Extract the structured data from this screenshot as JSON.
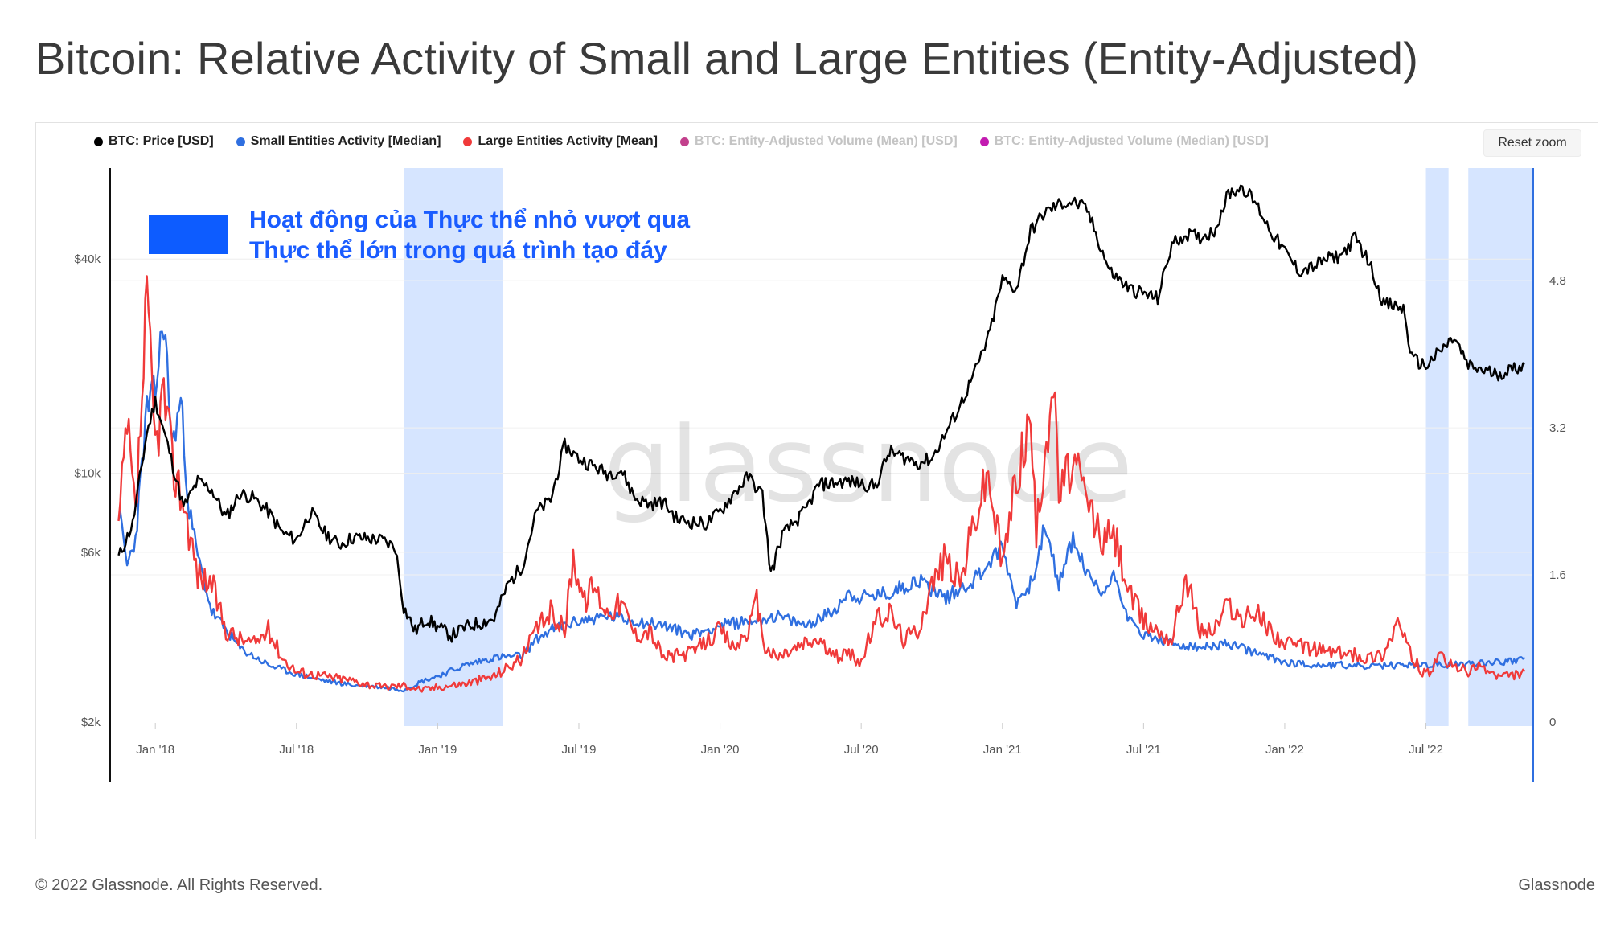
{
  "page": {
    "title": "Bitcoin: Relative Activity of Small and Large Entities (Entity-Adjusted)",
    "copyright": "© 2022 Glassnode. All Rights Reserved.",
    "brand": "Glassnode"
  },
  "toolbar": {
    "reset_zoom_label": "Reset zoom"
  },
  "legend": [
    {
      "label": "BTC: Price [USD]",
      "color": "#000000",
      "active": true
    },
    {
      "label": "Small Entities Activity [Median]",
      "color": "#2f6fe0",
      "active": true
    },
    {
      "label": "Large Entities Activity [Mean]",
      "color": "#f03a3a",
      "active": true
    },
    {
      "label": "BTC: Entity-Adjusted Volume (Mean) [USD]",
      "color": "#c2408c",
      "active": false
    },
    {
      "label": "BTC: Entity-Adjusted Volume (Median) [USD]",
      "color": "#c21bb0",
      "active": false
    }
  ],
  "annotation": {
    "line1": "Hoạt động của Thực thể nhỏ vượt qua",
    "line2": "Thực thể lớn trong quá trình tạo đáy",
    "color": "#0d5cff"
  },
  "watermark": "glassnode",
  "chart_data": {
    "type": "line",
    "x_range": [
      2017.84,
      2022.88
    ],
    "x_ticks": [
      {
        "t": 2018.0,
        "label": "Jan '18"
      },
      {
        "t": 2018.5,
        "label": "Jul '18"
      },
      {
        "t": 2019.0,
        "label": "Jan '19"
      },
      {
        "t": 2019.5,
        "label": "Jul '19"
      },
      {
        "t": 2020.0,
        "label": "Jan '20"
      },
      {
        "t": 2020.5,
        "label": "Jul '20"
      },
      {
        "t": 2021.0,
        "label": "Jan '21"
      },
      {
        "t": 2021.5,
        "label": "Jul '21"
      },
      {
        "t": 2022.0,
        "label": "Jan '22"
      },
      {
        "t": 2022.5,
        "label": "Jul '22"
      }
    ],
    "left_axis": {
      "scale": "log",
      "range": [
        2000,
        80000
      ],
      "ticks": [
        {
          "v": 2000,
          "label": "$2k"
        },
        {
          "v": 6000,
          "label": "$6k"
        },
        {
          "v": 10000,
          "label": "$10k"
        },
        {
          "v": 40000,
          "label": "$40k"
        }
      ]
    },
    "right_axis": {
      "scale": "linear",
      "range": [
        0,
        6.2
      ],
      "ticks": [
        {
          "v": 0,
          "label": "0"
        },
        {
          "v": 1.6,
          "label": "1.6"
        },
        {
          "v": 3.2,
          "label": "3.2"
        },
        {
          "v": 4.8,
          "label": "4.8"
        }
      ]
    },
    "highlight_periods": [
      [
        2018.88,
        2019.23
      ],
      [
        2022.5,
        2022.58
      ],
      [
        2022.65,
        2022.88
      ]
    ],
    "series": [
      {
        "name": "BTC: Price [USD]",
        "axis": "left",
        "color": "#000000",
        "points": [
          [
            2017.87,
            5800
          ],
          [
            2017.92,
            7200
          ],
          [
            2017.97,
            13000
          ],
          [
            2018.0,
            16000
          ],
          [
            2018.05,
            11500
          ],
          [
            2018.1,
            8000
          ],
          [
            2018.15,
            9500
          ],
          [
            2018.2,
            9000
          ],
          [
            2018.25,
            7500
          ],
          [
            2018.3,
            8800
          ],
          [
            2018.35,
            8500
          ],
          [
            2018.4,
            7800
          ],
          [
            2018.45,
            6800
          ],
          [
            2018.5,
            6500
          ],
          [
            2018.55,
            7800
          ],
          [
            2018.6,
            6800
          ],
          [
            2018.65,
            6300
          ],
          [
            2018.7,
            6600
          ],
          [
            2018.8,
            6500
          ],
          [
            2018.85,
            6200
          ],
          [
            2018.88,
            4200
          ],
          [
            2018.92,
            3600
          ],
          [
            2018.96,
            3900
          ],
          [
            2019.0,
            3700
          ],
          [
            2019.05,
            3500
          ],
          [
            2019.1,
            3700
          ],
          [
            2019.2,
            3900
          ],
          [
            2019.25,
            4900
          ],
          [
            2019.3,
            5500
          ],
          [
            2019.35,
            7800
          ],
          [
            2019.4,
            8400
          ],
          [
            2019.45,
            12000
          ],
          [
            2019.5,
            11000
          ],
          [
            2019.55,
            10500
          ],
          [
            2019.6,
            10000
          ],
          [
            2019.65,
            10200
          ],
          [
            2019.7,
            8500
          ],
          [
            2019.75,
            8200
          ],
          [
            2019.8,
            8300
          ],
          [
            2019.85,
            7400
          ],
          [
            2019.9,
            7300
          ],
          [
            2019.95,
            7200
          ],
          [
            2020.0,
            7800
          ],
          [
            2020.05,
            8800
          ],
          [
            2020.1,
            9800
          ],
          [
            2020.15,
            8700
          ],
          [
            2020.18,
            5200
          ],
          [
            2020.22,
            6700
          ],
          [
            2020.3,
            7800
          ],
          [
            2020.35,
            9300
          ],
          [
            2020.45,
            9500
          ],
          [
            2020.55,
            9200
          ],
          [
            2020.6,
            11500
          ],
          [
            2020.7,
            10700
          ],
          [
            2020.75,
            11000
          ],
          [
            2020.8,
            13000
          ],
          [
            2020.85,
            15500
          ],
          [
            2020.9,
            19000
          ],
          [
            2020.95,
            24000
          ],
          [
            2021.0,
            35000
          ],
          [
            2021.05,
            33000
          ],
          [
            2021.1,
            48000
          ],
          [
            2021.15,
            54000
          ],
          [
            2021.2,
            57000
          ],
          [
            2021.25,
            58000
          ],
          [
            2021.3,
            55000
          ],
          [
            2021.38,
            37000
          ],
          [
            2021.45,
            33000
          ],
          [
            2021.55,
            31000
          ],
          [
            2021.6,
            44000
          ],
          [
            2021.65,
            47000
          ],
          [
            2021.7,
            46000
          ],
          [
            2021.75,
            48000
          ],
          [
            2021.8,
            61000
          ],
          [
            2021.85,
            64000
          ],
          [
            2021.9,
            57000
          ],
          [
            2021.95,
            48000
          ],
          [
            2022.0,
            42000
          ],
          [
            2022.05,
            37000
          ],
          [
            2022.1,
            38000
          ],
          [
            2022.15,
            40000
          ],
          [
            2022.2,
            41000
          ],
          [
            2022.25,
            46000
          ],
          [
            2022.3,
            39000
          ],
          [
            2022.35,
            30000
          ],
          [
            2022.42,
            29000
          ],
          [
            2022.45,
            21000
          ],
          [
            2022.5,
            20000
          ],
          [
            2022.55,
            22000
          ],
          [
            2022.6,
            24000
          ],
          [
            2022.65,
            20000
          ],
          [
            2022.7,
            19500
          ],
          [
            2022.75,
            19000
          ],
          [
            2022.8,
            19500
          ],
          [
            2022.85,
            20300
          ]
        ]
      },
      {
        "name": "Small Entities Activity [Median]",
        "axis": "right",
        "color": "#2f6fe0",
        "points": [
          [
            2017.87,
            2.3
          ],
          [
            2017.9,
            1.7
          ],
          [
            2017.93,
            2.0
          ],
          [
            2017.97,
            3.4
          ],
          [
            2018.0,
            3.6
          ],
          [
            2018.03,
            4.4
          ],
          [
            2018.06,
            3.0
          ],
          [
            2018.09,
            3.5
          ],
          [
            2018.12,
            2.3
          ],
          [
            2018.15,
            1.8
          ],
          [
            2018.2,
            1.2
          ],
          [
            2018.3,
            0.8
          ],
          [
            2018.4,
            0.62
          ],
          [
            2018.5,
            0.52
          ],
          [
            2018.6,
            0.45
          ],
          [
            2018.7,
            0.4
          ],
          [
            2018.8,
            0.38
          ],
          [
            2018.88,
            0.35
          ],
          [
            2018.95,
            0.45
          ],
          [
            2019.0,
            0.5
          ],
          [
            2019.1,
            0.62
          ],
          [
            2019.2,
            0.7
          ],
          [
            2019.3,
            0.72
          ],
          [
            2019.35,
            0.9
          ],
          [
            2019.4,
            1.0
          ],
          [
            2019.5,
            1.1
          ],
          [
            2019.6,
            1.15
          ],
          [
            2019.7,
            1.1
          ],
          [
            2019.8,
            1.05
          ],
          [
            2019.9,
            0.95
          ],
          [
            2020.0,
            1.05
          ],
          [
            2020.1,
            1.1
          ],
          [
            2020.2,
            1.15
          ],
          [
            2020.3,
            1.05
          ],
          [
            2020.4,
            1.2
          ],
          [
            2020.45,
            1.4
          ],
          [
            2020.5,
            1.35
          ],
          [
            2020.6,
            1.4
          ],
          [
            2020.7,
            1.55
          ],
          [
            2020.8,
            1.35
          ],
          [
            2020.9,
            1.55
          ],
          [
            2021.0,
            1.9
          ],
          [
            2021.05,
            1.3
          ],
          [
            2021.1,
            1.5
          ],
          [
            2021.15,
            2.1
          ],
          [
            2021.2,
            1.5
          ],
          [
            2021.25,
            2.0
          ],
          [
            2021.3,
            1.6
          ],
          [
            2021.35,
            1.4
          ],
          [
            2021.4,
            1.6
          ],
          [
            2021.45,
            1.1
          ],
          [
            2021.5,
            0.95
          ],
          [
            2021.6,
            0.85
          ],
          [
            2021.7,
            0.8
          ],
          [
            2021.8,
            0.85
          ],
          [
            2021.9,
            0.75
          ],
          [
            2022.0,
            0.65
          ],
          [
            2022.1,
            0.62
          ],
          [
            2022.2,
            0.62
          ],
          [
            2022.3,
            0.6
          ],
          [
            2022.4,
            0.62
          ],
          [
            2022.5,
            0.62
          ],
          [
            2022.6,
            0.62
          ],
          [
            2022.7,
            0.65
          ],
          [
            2022.8,
            0.66
          ],
          [
            2022.85,
            0.7
          ]
        ]
      },
      {
        "name": "Large Entities Activity [Mean]",
        "axis": "right",
        "color": "#f03a3a",
        "points": [
          [
            2017.87,
            2.1
          ],
          [
            2017.9,
            3.2
          ],
          [
            2017.93,
            2.2
          ],
          [
            2017.97,
            4.5
          ],
          [
            2018.0,
            3.0
          ],
          [
            2018.03,
            3.6
          ],
          [
            2018.06,
            2.8
          ],
          [
            2018.1,
            2.4
          ],
          [
            2018.15,
            1.6
          ],
          [
            2018.2,
            1.5
          ],
          [
            2018.25,
            1.0
          ],
          [
            2018.3,
            0.9
          ],
          [
            2018.35,
            0.85
          ],
          [
            2018.4,
            1.0
          ],
          [
            2018.45,
            0.7
          ],
          [
            2018.5,
            0.55
          ],
          [
            2018.6,
            0.5
          ],
          [
            2018.7,
            0.45
          ],
          [
            2018.8,
            0.38
          ],
          [
            2018.88,
            0.4
          ],
          [
            2018.95,
            0.35
          ],
          [
            2019.0,
            0.38
          ],
          [
            2019.1,
            0.42
          ],
          [
            2019.2,
            0.5
          ],
          [
            2019.3,
            0.7
          ],
          [
            2019.35,
            1.0
          ],
          [
            2019.4,
            1.2
          ],
          [
            2019.45,
            1.0
          ],
          [
            2019.48,
            1.8
          ],
          [
            2019.52,
            1.3
          ],
          [
            2019.55,
            1.5
          ],
          [
            2019.6,
            1.2
          ],
          [
            2019.65,
            1.3
          ],
          [
            2019.7,
            0.95
          ],
          [
            2019.75,
            1.0
          ],
          [
            2019.8,
            0.7
          ],
          [
            2019.9,
            0.75
          ],
          [
            2020.0,
            1.0
          ],
          [
            2020.05,
            0.8
          ],
          [
            2020.1,
            1.0
          ],
          [
            2020.13,
            1.3
          ],
          [
            2020.16,
            0.8
          ],
          [
            2020.2,
            0.7
          ],
          [
            2020.3,
            0.85
          ],
          [
            2020.35,
            0.9
          ],
          [
            2020.4,
            0.7
          ],
          [
            2020.45,
            0.75
          ],
          [
            2020.5,
            0.65
          ],
          [
            2020.55,
            1.1
          ],
          [
            2020.6,
            1.2
          ],
          [
            2020.65,
            0.9
          ],
          [
            2020.7,
            1.0
          ],
          [
            2020.75,
            1.5
          ],
          [
            2020.8,
            1.8
          ],
          [
            2020.85,
            1.5
          ],
          [
            2020.9,
            2.2
          ],
          [
            2020.95,
            2.7
          ],
          [
            2021.0,
            1.7
          ],
          [
            2021.05,
            2.7
          ],
          [
            2021.1,
            3.3
          ],
          [
            2021.12,
            2.0
          ],
          [
            2021.15,
            3.0
          ],
          [
            2021.18,
            3.7
          ],
          [
            2021.2,
            2.5
          ],
          [
            2021.25,
            2.8
          ],
          [
            2021.3,
            2.4
          ],
          [
            2021.35,
            2.0
          ],
          [
            2021.4,
            2.0
          ],
          [
            2021.45,
            1.4
          ],
          [
            2021.5,
            1.1
          ],
          [
            2021.55,
            1.0
          ],
          [
            2021.6,
            0.9
          ],
          [
            2021.65,
            1.6
          ],
          [
            2021.7,
            1.0
          ],
          [
            2021.75,
            1.0
          ],
          [
            2021.8,
            1.3
          ],
          [
            2021.85,
            1.1
          ],
          [
            2021.9,
            1.2
          ],
          [
            2021.95,
            1.0
          ],
          [
            2022.0,
            0.85
          ],
          [
            2022.1,
            0.8
          ],
          [
            2022.2,
            0.75
          ],
          [
            2022.3,
            0.7
          ],
          [
            2022.35,
            0.75
          ],
          [
            2022.4,
            1.1
          ],
          [
            2022.45,
            0.7
          ],
          [
            2022.5,
            0.5
          ],
          [
            2022.55,
            0.7
          ],
          [
            2022.6,
            0.6
          ],
          [
            2022.65,
            0.55
          ],
          [
            2022.7,
            0.6
          ],
          [
            2022.75,
            0.5
          ],
          [
            2022.8,
            0.5
          ],
          [
            2022.85,
            0.55
          ]
        ]
      }
    ]
  }
}
